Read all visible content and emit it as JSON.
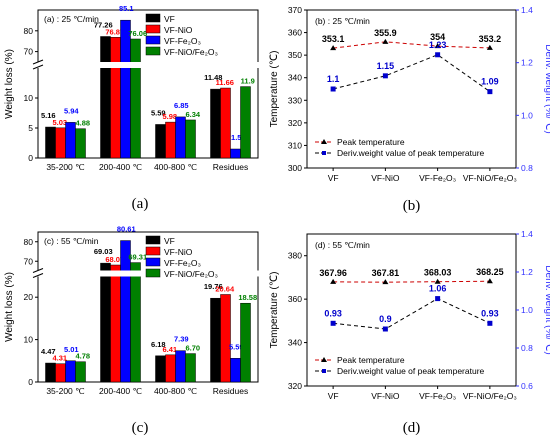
{
  "panels": [
    {
      "id": "a",
      "letter": "(a)",
      "condition": "(a) : 25 ℃/min",
      "ylabel": "Weight loss (%)",
      "legend": [
        "VF",
        "VF-NiO",
        "VF-Fe₂O₃",
        "VF-NiO/Fe₂O₃"
      ],
      "categories": [
        "35-200 ℃",
        "200-400 ℃",
        "400-800 ℃",
        "Residues"
      ],
      "ticks_low": [
        "0",
        "5",
        "10"
      ],
      "ticks_high": [
        "70",
        "80"
      ],
      "values": [
        [
          5.16,
          5.03,
          5.94,
          4.88
        ],
        [
          77.26,
          76.87,
          85.1,
          76.06
        ],
        [
          5.59,
          5.98,
          6.85,
          6.34
        ],
        [
          11.48,
          11.66,
          1.5,
          11.9
        ]
      ],
      "labels": [
        [
          "5.16",
          "5.03",
          "5.94",
          "4.88"
        ],
        [
          "77.26",
          "76.87",
          "85.1",
          "76.06"
        ],
        [
          "5.59",
          "5.98",
          "6.85",
          "6.34"
        ],
        [
          "11.48",
          "11.66",
          "1.5",
          "11.9"
        ]
      ]
    },
    {
      "id": "c",
      "letter": "(c)",
      "condition": "(c) : 55 ℃/min",
      "ylabel": "Weight loss (%)",
      "legend": [
        "VF",
        "VF-NiO",
        "VF-Fe₂O₃",
        "VF-NiO/Fe₂O₃"
      ],
      "categories": [
        "35-200 ℃",
        "200-400 ℃",
        "400-800 ℃",
        "Residues"
      ],
      "ticks_low": [
        "0",
        "10",
        "20"
      ],
      "ticks_high": [
        "70",
        "80"
      ],
      "values": [
        [
          4.47,
          4.31,
          5.01,
          4.78
        ],
        [
          69.03,
          68.07,
          80.61,
          69.31
        ],
        [
          6.18,
          6.41,
          7.39,
          6.7
        ],
        [
          19.76,
          20.64,
          5.59,
          18.58
        ]
      ],
      "labels": [
        [
          "4.47",
          "4.31",
          "5.01",
          "4.78"
        ],
        [
          "69.03",
          "68.07",
          "80.61",
          "69.31"
        ],
        [
          "6.18",
          "6.41",
          "7.39",
          "6.70"
        ],
        [
          "19.76",
          "20.64",
          "5.59",
          "18.58"
        ]
      ]
    }
  ],
  "line_panels": [
    {
      "id": "b",
      "letter": "(b)",
      "condition": "(b) : 25 ℃/min",
      "ylabel_left": "Temperature (℃)",
      "ylabel_right": "Deriv. weight (%/℃)",
      "categories": [
        "VF",
        "VF-NiO",
        "VF-Fe₂O₃",
        "VF-NiO/Fe₂O₃"
      ],
      "left_ticks": [
        "300",
        "310",
        "320",
        "330",
        "340",
        "350",
        "360",
        "370"
      ],
      "right_ticks": [
        "0.8",
        "1.0",
        "1.2",
        "1.4"
      ],
      "legend": [
        "Peak temperature",
        "Deriv.weight value of peak temperature"
      ],
      "peak_temperature": [
        353.1,
        355.9,
        354,
        353.2
      ],
      "peak_labels": [
        "353.1",
        "355.9",
        "354",
        "353.2"
      ],
      "deriv_weight": [
        1.1,
        1.15,
        1.23,
        1.09
      ],
      "deriv_labels": [
        "1.1",
        "1.15",
        "1.23",
        "1.09"
      ]
    },
    {
      "id": "d",
      "letter": "(d)",
      "condition": "(d) : 55 ℃/min",
      "ylabel_left": "Temperature (℃)",
      "ylabel_right": "Deriv. weight (%/℃)",
      "categories": [
        "VF",
        "VF-NiO",
        "VF-Fe₂O₃",
        "VF-NiO/Fe₂O₃"
      ],
      "left_ticks": [
        "320",
        "340",
        "360",
        "380"
      ],
      "right_ticks": [
        "0.6",
        "0.8",
        "1.0",
        "1.2",
        "1.4"
      ],
      "legend": [
        "Peak temperature",
        "Deriv.weight value of peak temperature"
      ],
      "peak_temperature": [
        367.96,
        367.81,
        368.03,
        368.25
      ],
      "peak_labels": [
        "367.96",
        "367.81",
        "368.03",
        "368.25"
      ],
      "deriv_weight": [
        0.93,
        0.9,
        1.06,
        0.93
      ],
      "deriv_labels": [
        "0.93",
        "0.9",
        "1.06",
        "0.93"
      ]
    }
  ],
  "colors": {
    "series": [
      "#000000",
      "#ff0000",
      "#0000ff",
      "#008000"
    ],
    "label": [
      "#000000",
      "#ff0000",
      "#0000ff",
      "#008000"
    ],
    "peak": "#cc0000",
    "deriv": "#0000cc",
    "right_axis": "#3333ff"
  },
  "chart_data": [
    {
      "type": "bar",
      "title": "(a) : 25 ℃/min",
      "ylabel": "Weight loss (%)",
      "xlabel": "",
      "categories": [
        "35-200 ℃",
        "200-400 ℃",
        "400-800 ℃",
        "Residues"
      ],
      "ylim": [
        0,
        90
      ],
      "axis_break": [
        15,
        65
      ],
      "series": [
        {
          "name": "VF",
          "values": [
            5.16,
            77.26,
            5.59,
            11.48
          ]
        },
        {
          "name": "VF-NiO",
          "values": [
            5.03,
            76.87,
            5.98,
            11.66
          ]
        },
        {
          "name": "VF-Fe₂O₃",
          "values": [
            5.94,
            85.1,
            6.85,
            1.5
          ]
        },
        {
          "name": "VF-NiO/Fe₂O₃",
          "values": [
            4.88,
            76.06,
            6.34,
            11.9
          ]
        }
      ],
      "legend_position": "top-right"
    },
    {
      "type": "line",
      "title": "(b) : 25 ℃/min",
      "categories": [
        "VF",
        "VF-NiO",
        "VF-Fe₂O₃",
        "VF-NiO/Fe₂O₃"
      ],
      "ylabel": "Temperature (℃)",
      "ylabel_right": "Deriv. weight (%/℃)",
      "ylim": [
        300,
        370
      ],
      "ylim_right": [
        0.8,
        1.4
      ],
      "series": [
        {
          "name": "Peak temperature",
          "axis": "left",
          "values": [
            353.1,
            355.9,
            354,
            353.2
          ]
        },
        {
          "name": "Deriv.weight value of peak temperature",
          "axis": "right",
          "values": [
            1.1,
            1.15,
            1.23,
            1.09
          ]
        }
      ],
      "legend_position": "bottom-left"
    },
    {
      "type": "bar",
      "title": "(c) : 55 ℃/min",
      "ylabel": "Weight loss (%)",
      "xlabel": "",
      "categories": [
        "35-200 ℃",
        "200-400 ℃",
        "400-800 ℃",
        "Residues"
      ],
      "ylim": [
        0,
        85
      ],
      "axis_break": [
        25,
        65
      ],
      "series": [
        {
          "name": "VF",
          "values": [
            4.47,
            69.03,
            6.18,
            19.76
          ]
        },
        {
          "name": "VF-NiO",
          "values": [
            4.31,
            68.07,
            6.41,
            20.64
          ]
        },
        {
          "name": "VF-Fe₂O₃",
          "values": [
            5.01,
            80.61,
            7.39,
            5.59
          ]
        },
        {
          "name": "VF-NiO/Fe₂O₃",
          "values": [
            4.78,
            69.31,
            6.7,
            18.58
          ]
        }
      ],
      "legend_position": "top-right"
    },
    {
      "type": "line",
      "title": "(d) : 55 ℃/min",
      "categories": [
        "VF",
        "VF-NiO",
        "VF-Fe₂O₃",
        "VF-NiO/Fe₂O₃"
      ],
      "ylabel": "Temperature (℃)",
      "ylabel_right": "Deriv. weight (%/℃)",
      "ylim": [
        320,
        390
      ],
      "ylim_right": [
        0.6,
        1.4
      ],
      "series": [
        {
          "name": "Peak temperature",
          "axis": "left",
          "values": [
            367.96,
            367.81,
            368.03,
            368.25
          ]
        },
        {
          "name": "Deriv.weight value of peak temperature",
          "axis": "right",
          "values": [
            0.93,
            0.9,
            1.06,
            0.93
          ]
        }
      ],
      "legend_position": "bottom-left"
    }
  ]
}
